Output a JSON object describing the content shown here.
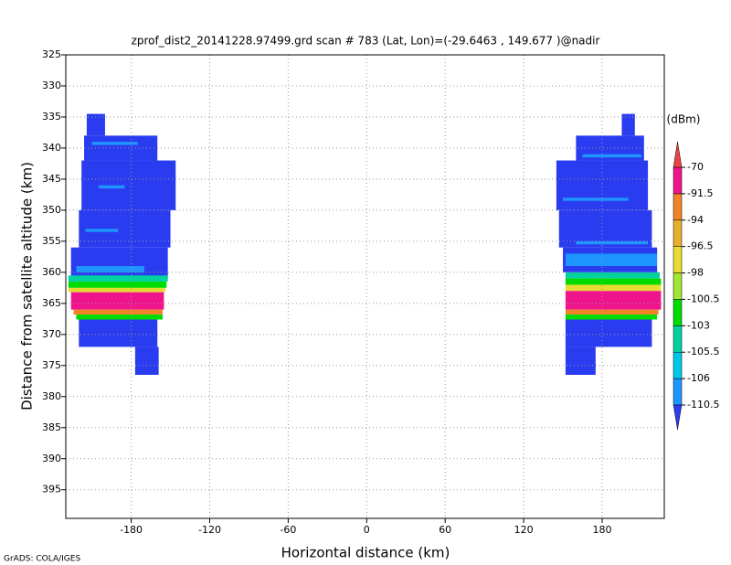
{
  "chart_data": {
    "type": "heatmap",
    "title": "zprof_dist2_20141228.97499.grd  scan # 783  (Lat, Lon)=(-29.6463 , 149.677 )@nadir",
    "x_label": "Horizontal distance (km)",
    "y_label": "Distance from satellite altitude (km)",
    "footer": "GrADS: COLA/IGES",
    "xlim": [
      -230,
      227.5
    ],
    "ylim": [
      325,
      399.6
    ],
    "y_reversed": true,
    "xticks": [
      -180,
      -120,
      -60,
      0,
      60,
      120,
      180
    ],
    "yticks": [
      325,
      330,
      335,
      340,
      345,
      350,
      355,
      360,
      365,
      370,
      375,
      380,
      385,
      390,
      395
    ],
    "grid": true,
    "colorbar": {
      "unit": "(dBm)",
      "levels": [
        -110.5,
        -106,
        -105.5,
        -103,
        -100.5,
        -98,
        -96.5,
        -94,
        -91.5,
        -70
      ],
      "colors": [
        "#2a3cf0",
        "#1e96ff",
        "#00c8e6",
        "#00d2a0",
        "#00dc00",
        "#a0e632",
        "#e6dc32",
        "#e6af2d",
        "#f08228",
        "#f0148c",
        "#f04040"
      ]
    },
    "cells": [
      {
        "x": [
          -214,
          -200
        ],
        "y": [
          334.5,
          338
        ],
        "value": -112
      },
      {
        "x": [
          -216,
          -160
        ],
        "y": [
          338,
          342
        ],
        "value": -112
      },
      {
        "x": [
          -218,
          -146
        ],
        "y": [
          342,
          350
        ],
        "value": -112
      },
      {
        "x": [
          -220,
          -150
        ],
        "y": [
          350,
          356
        ],
        "value": -112
      },
      {
        "x": [
          -226,
          -152
        ],
        "y": [
          356,
          361
        ],
        "value": -112
      },
      {
        "x": [
          -210,
          -175
        ],
        "y": [
          339,
          339.5
        ],
        "value": -108
      },
      {
        "x": [
          -205,
          -185
        ],
        "y": [
          346,
          346.5
        ],
        "value": -108
      },
      {
        "x": [
          -215,
          -190
        ],
        "y": [
          353,
          353.5
        ],
        "value": -108
      },
      {
        "x": [
          -222,
          -170
        ],
        "y": [
          359,
          360
        ],
        "value": -108
      },
      {
        "x": [
          -228,
          -152
        ],
        "y": [
          360.5,
          361.5
        ],
        "value": -104
      },
      {
        "x": [
          -228,
          -153
        ],
        "y": [
          361.5,
          362.5
        ],
        "value": -101
      },
      {
        "x": [
          -228,
          -154
        ],
        "y": [
          362.5,
          363.2
        ],
        "value": -97
      },
      {
        "x": [
          -226,
          -155
        ],
        "y": [
          363.2,
          366
        ],
        "value": -85
      },
      {
        "x": [
          -224,
          -156
        ],
        "y": [
          366,
          366.8
        ],
        "value": -93
      },
      {
        "x": [
          -222,
          -156
        ],
        "y": [
          366.8,
          367.6
        ],
        "value": -102
      },
      {
        "x": [
          -220,
          -160
        ],
        "y": [
          367.6,
          372
        ],
        "value": -112
      },
      {
        "x": [
          -177,
          -159
        ],
        "y": [
          372,
          376.5
        ],
        "value": -112
      },
      {
        "x": [
          195,
          205
        ],
        "y": [
          334.5,
          338
        ],
        "value": -112
      },
      {
        "x": [
          160,
          212
        ],
        "y": [
          338,
          342
        ],
        "value": -112
      },
      {
        "x": [
          145,
          215
        ],
        "y": [
          342,
          350
        ],
        "value": -112
      },
      {
        "x": [
          147,
          218
        ],
        "y": [
          350,
          356
        ],
        "value": -112
      },
      {
        "x": [
          150,
          222
        ],
        "y": [
          356,
          360
        ],
        "value": -112
      },
      {
        "x": [
          165,
          210
        ],
        "y": [
          341,
          341.5
        ],
        "value": -108
      },
      {
        "x": [
          150,
          200
        ],
        "y": [
          348,
          348.5
        ],
        "value": -108
      },
      {
        "x": [
          160,
          215
        ],
        "y": [
          355,
          355.5
        ],
        "value": -108
      },
      {
        "x": [
          152,
          222
        ],
        "y": [
          357,
          359
        ],
        "value": -108
      },
      {
        "x": [
          152,
          224
        ],
        "y": [
          360,
          361
        ],
        "value": -104
      },
      {
        "x": [
          152,
          225
        ],
        "y": [
          361,
          362
        ],
        "value": -101
      },
      {
        "x": [
          152,
          225
        ],
        "y": [
          362,
          363
        ],
        "value": -97
      },
      {
        "x": [
          152,
          225
        ],
        "y": [
          363,
          366
        ],
        "value": -85
      },
      {
        "x": [
          152,
          223
        ],
        "y": [
          366,
          366.8
        ],
        "value": -93
      },
      {
        "x": [
          152,
          222
        ],
        "y": [
          366.8,
          367.6
        ],
        "value": -102
      },
      {
        "x": [
          152,
          218
        ],
        "y": [
          367.6,
          372
        ],
        "value": -112
      },
      {
        "x": [
          152,
          175
        ],
        "y": [
          372,
          376.5
        ],
        "value": -112
      }
    ]
  }
}
